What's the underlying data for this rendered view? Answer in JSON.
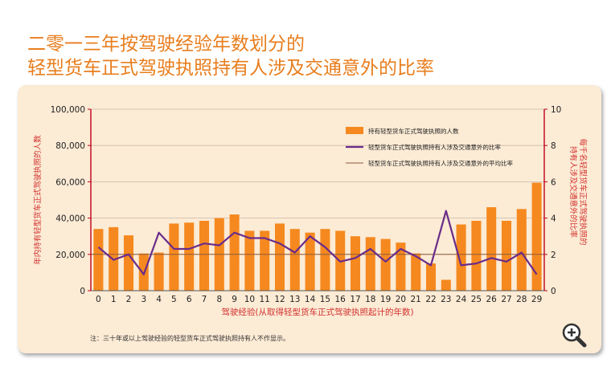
{
  "title_line1": "二零一三年按驾驶经验年数划分的",
  "title_line2": "轻型货车正式驾驶执照持有人涉及交通意外的比率",
  "footnote": "注：三十年或以上驾驶经验的轻型货车正式驾驶执照持有人不作显示。",
  "colors": {
    "title": "#e87e1e",
    "bar": "#f5891f",
    "line": "#6a2c8a",
    "avg_line": "#8b5a3c",
    "axis": "#c0001a",
    "label": "#d0312d",
    "panel": "#fcebd5"
  },
  "icons": {
    "zoom": "zoom-in-magnifier-icon"
  },
  "chart_data": {
    "type": "bar",
    "categories": [
      "0",
      "1",
      "2",
      "3",
      "4",
      "5",
      "6",
      "7",
      "8",
      "9",
      "10",
      "11",
      "12",
      "13",
      "14",
      "15",
      "16",
      "17",
      "18",
      "19",
      "20",
      "21",
      "22",
      "23",
      "24",
      "25",
      "26",
      "27",
      "28",
      "29"
    ],
    "xlabel": "驾驶经验(从取得轻型货车正式驾驶执照起计的年数)",
    "ylabel_left": "年内持有轻型货车正式驾驶执照的人数",
    "ylabel_right": "每千名轻型货车正式驾驶执照的持有人涉及交通意外的比率",
    "ylim_left": [
      0,
      100000
    ],
    "ylim_right": [
      0,
      10
    ],
    "yticks_left": [
      "0",
      "20,000",
      "40,000",
      "60,000",
      "80,000",
      "100,000"
    ],
    "yticks_right": [
      "0",
      "2",
      "4",
      "6",
      "8",
      "10"
    ],
    "legend_position": "top-right",
    "series": [
      {
        "name": "持有轻型货车正式驾驶执照的人数",
        "type": "bar",
        "axis": "left",
        "values": [
          34000,
          35000,
          30500,
          20500,
          21000,
          37000,
          37500,
          38500,
          40000,
          42000,
          33000,
          33000,
          37000,
          34000,
          32000,
          34000,
          33000,
          30000,
          29500,
          28500,
          26500,
          20500,
          15000,
          6000,
          36500,
          38500,
          46000,
          38500,
          45000,
          59500
        ]
      },
      {
        "name": "轻型货车正式驾驶执照持有人涉及交通意外的比率",
        "type": "line",
        "axis": "right",
        "values": [
          2.4,
          1.7,
          2.0,
          0.9,
          3.2,
          2.3,
          2.3,
          2.6,
          2.5,
          3.2,
          2.9,
          2.9,
          2.6,
          2.1,
          3.0,
          2.4,
          1.6,
          1.8,
          2.3,
          1.6,
          2.3,
          1.9,
          1.4,
          4.4,
          1.4,
          1.5,
          1.8,
          1.6,
          2.1,
          0.9
        ]
      },
      {
        "name": "轻型货车正式驾驶执照持有人涉及交通意外的平均比率",
        "type": "hline",
        "axis": "right",
        "value": 2.0
      }
    ]
  }
}
